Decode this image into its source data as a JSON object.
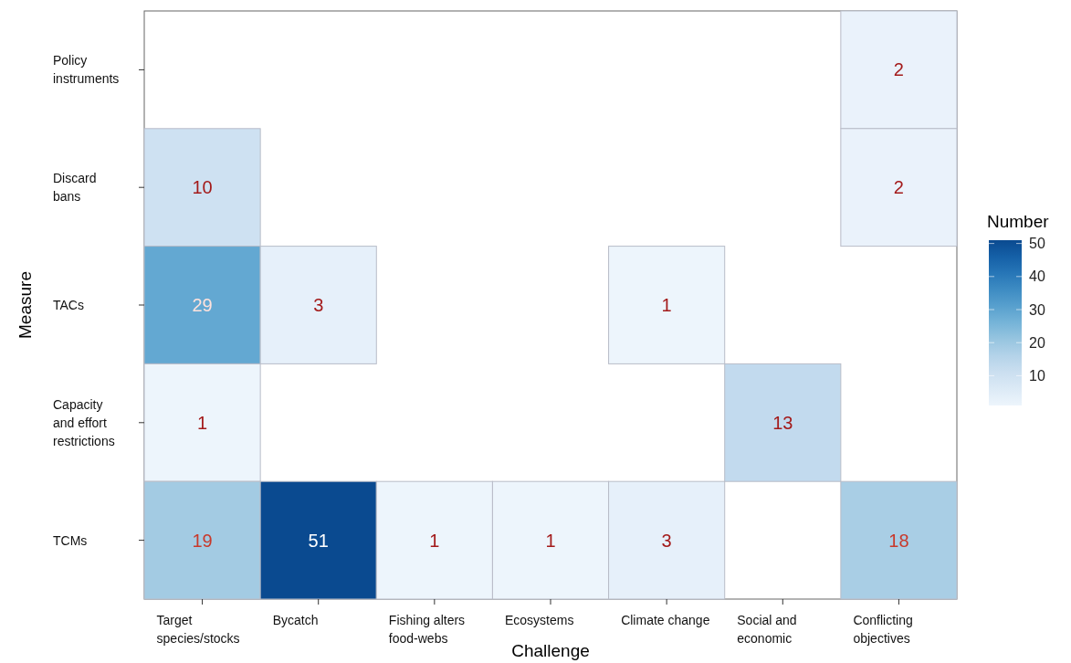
{
  "chart_data": {
    "type": "heatmap",
    "xlabel": "Challenge",
    "ylabel": "Measure",
    "clabel": "Number",
    "categories": [
      "Target species/stocks",
      "Bycatch",
      "Fishing alters food-webs",
      "Ecosystems",
      "Climate change",
      "Social and economic",
      "Conflicting objectives"
    ],
    "y_categories": [
      "Policy instruments",
      "Discard bans",
      "TACs",
      "Capacity and effort restrictions",
      "TCMs"
    ],
    "cells": [
      [
        null,
        null,
        null,
        null,
        null,
        null,
        2
      ],
      [
        10,
        null,
        null,
        null,
        null,
        null,
        2
      ],
      [
        29,
        3,
        null,
        null,
        1,
        null,
        null
      ],
      [
        1,
        null,
        null,
        null,
        null,
        13,
        null
      ],
      [
        19,
        51,
        1,
        1,
        3,
        null,
        18
      ]
    ],
    "clim": [
      1,
      51
    ],
    "cticks": [
      10,
      20,
      30,
      40,
      50
    ],
    "data_labels": true
  }
}
